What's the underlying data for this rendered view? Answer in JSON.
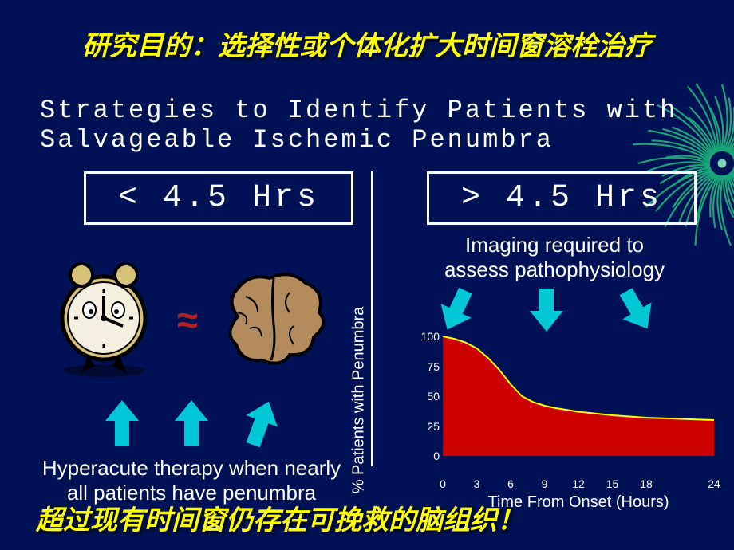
{
  "title": "研究目的：选择性或个体化扩大时间窗溶栓治疗",
  "subtitle_line1": "Strategies to Identify Patients with",
  "subtitle_line2": "Salvageable Ischemic Penumbra",
  "left": {
    "box": "< 4.5 Hrs",
    "caption_line1": "Hyperacute therapy when nearly",
    "caption_line2": "all patients have penumbra",
    "approx": "≈"
  },
  "right": {
    "box": "> 4.5 Hrs",
    "caption_line1": "Imaging required to",
    "caption_line2": "assess pathophysiology"
  },
  "chart": {
    "type": "area",
    "y_label": "% Patients with Penumbra",
    "x_label": "Time From Onset (Hours)",
    "x_ticks": [
      0,
      3,
      6,
      9,
      12,
      15,
      18,
      24
    ],
    "y_ticks": [
      0,
      25,
      50,
      75,
      100
    ],
    "x_max": 24,
    "y_max": 100,
    "fill_color": "#cc0000",
    "line_color": "#ffff00",
    "line_width": 2,
    "background": "#001255",
    "axis_color": "#ffffff",
    "tick_fontsize": 14,
    "data": [
      {
        "x": 0,
        "y": 100
      },
      {
        "x": 1,
        "y": 98
      },
      {
        "x": 2,
        "y": 95
      },
      {
        "x": 3,
        "y": 90
      },
      {
        "x": 4,
        "y": 82
      },
      {
        "x": 5,
        "y": 72
      },
      {
        "x": 6,
        "y": 60
      },
      {
        "x": 7,
        "y": 50
      },
      {
        "x": 8,
        "y": 45
      },
      {
        "x": 9,
        "y": 42
      },
      {
        "x": 10,
        "y": 40
      },
      {
        "x": 12,
        "y": 37
      },
      {
        "x": 15,
        "y": 34
      },
      {
        "x": 18,
        "y": 32
      },
      {
        "x": 21,
        "y": 31
      },
      {
        "x": 24,
        "y": 30
      }
    ]
  },
  "footer": "超过现有时间窗仍存在可挽救的脑组织！",
  "colors": {
    "bg": "#001255",
    "title": "#ffff00",
    "arrow": "#00c8d7",
    "outline": "#ffffff",
    "approx": "#b22222",
    "firework": "#1aa57a"
  }
}
